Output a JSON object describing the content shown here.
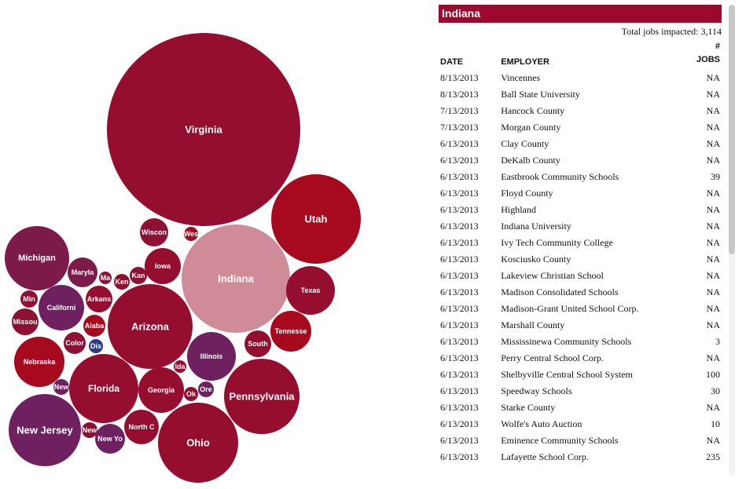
{
  "chart_data": {
    "type": "bubble",
    "bubbles": [
      {
        "label": "Virginia",
        "color": "#950e2f"
      },
      {
        "label": "Utah",
        "color": "#a70a1e"
      },
      {
        "label": "Indiana",
        "color": "#cf8b98"
      },
      {
        "label": "Wiscon",
        "color": "#8f1034"
      },
      {
        "label": "Wes",
        "color": "#a70a1e"
      },
      {
        "label": "Michigan",
        "color": "#7c1a4a"
      },
      {
        "label": "Maryla",
        "color": "#7c1a4a"
      },
      {
        "label": "Ma",
        "color": "#8f1034"
      },
      {
        "label": "Ken",
        "color": "#950e2f"
      },
      {
        "label": "Kan",
        "color": "#8f1034"
      },
      {
        "label": "Iowa",
        "color": "#950e2f"
      },
      {
        "label": "Texas",
        "color": "#950e2f"
      },
      {
        "label": "Min",
        "color": "#8f1034"
      },
      {
        "label": "Californi",
        "color": "#6f2060"
      },
      {
        "label": "Arkans",
        "color": "#950e2f"
      },
      {
        "label": "Missou",
        "color": "#8f1034"
      },
      {
        "label": "Alaba",
        "color": "#a70a1e"
      },
      {
        "label": "Arizona",
        "color": "#950e2f"
      },
      {
        "label": "Tennesse",
        "color": "#a70a1e"
      },
      {
        "label": "South",
        "color": "#950e2f"
      },
      {
        "label": "Color",
        "color": "#8f1034"
      },
      {
        "label": "Dis",
        "color": "#2d3a8c"
      },
      {
        "label": "Illinois",
        "color": "#6f2060"
      },
      {
        "label": "Nebraska",
        "color": "#a70a1e"
      },
      {
        "label": "Ida",
        "color": "#950e2f"
      },
      {
        "label": "Ok",
        "color": "#950e2f"
      },
      {
        "label": "Ore",
        "color": "#6f2060"
      },
      {
        "label": "Georgia",
        "color": "#950e2f"
      },
      {
        "label": "Florida",
        "color": "#950e2f"
      },
      {
        "label": "New",
        "color": "#6f2060"
      },
      {
        "label": "Pennsylvania",
        "color": "#950e2f"
      },
      {
        "label": "New Jersey",
        "color": "#6f2060"
      },
      {
        "label": "New",
        "color": "#8f1034"
      },
      {
        "label": "North C",
        "color": "#950e2f"
      },
      {
        "label": "New Yo",
        "color": "#6f2060"
      },
      {
        "label": "Ohio",
        "color": "#950e2f"
      }
    ]
  },
  "panel": {
    "title": "Indiana",
    "total_label": "Total jobs impacted:",
    "total_value": "3,114",
    "headers": {
      "date": "DATE",
      "employer": "EMPLOYER",
      "jobs_top": "#",
      "jobs": "JOBS"
    },
    "rows": [
      {
        "date": "8/13/2013",
        "employer": "Vincennes",
        "jobs": "NA"
      },
      {
        "date": "8/13/2013",
        "employer": "Ball State University",
        "jobs": "NA"
      },
      {
        "date": "7/13/2013",
        "employer": "Hancock County",
        "jobs": "NA"
      },
      {
        "date": "7/13/2013",
        "employer": "Morgan County",
        "jobs": "NA"
      },
      {
        "date": "6/13/2013",
        "employer": "Clay County",
        "jobs": "NA"
      },
      {
        "date": "6/13/2013",
        "employer": "DeKalb County",
        "jobs": "NA"
      },
      {
        "date": "6/13/2013",
        "employer": "Eastbrook Community Schools",
        "jobs": "39"
      },
      {
        "date": "6/13/2013",
        "employer": "Floyd County",
        "jobs": "NA"
      },
      {
        "date": "6/13/2013",
        "employer": "Highland",
        "jobs": "NA"
      },
      {
        "date": "6/13/2013",
        "employer": "Indiana University",
        "jobs": "NA"
      },
      {
        "date": "6/13/2013",
        "employer": "Ivy Tech Community College",
        "jobs": "NA"
      },
      {
        "date": "6/13/2013",
        "employer": "Kosciusko County",
        "jobs": "NA"
      },
      {
        "date": "6/13/2013",
        "employer": "Lakeview Christian School",
        "jobs": "NA"
      },
      {
        "date": "6/13/2013",
        "employer": "Madison Consolidated Schools",
        "jobs": "NA"
      },
      {
        "date": "6/13/2013",
        "employer": "Madison-Grant United School Corp.",
        "jobs": "NA"
      },
      {
        "date": "6/13/2013",
        "employer": "Marshall County",
        "jobs": "NA"
      },
      {
        "date": "6/13/2013",
        "employer": "Mississinewa Community Schools",
        "jobs": "3"
      },
      {
        "date": "6/13/2013",
        "employer": "Perry Central School Corp.",
        "jobs": "NA"
      },
      {
        "date": "6/13/2013",
        "employer": "Shelbyville Central School System",
        "jobs": "100"
      },
      {
        "date": "6/13/2013",
        "employer": "Speedway Schools",
        "jobs": "30"
      },
      {
        "date": "6/13/2013",
        "employer": "Starke County",
        "jobs": "NA"
      },
      {
        "date": "6/13/2013",
        "employer": "Wolfe's Auto Auction",
        "jobs": "10"
      },
      {
        "date": "6/13/2013",
        "employer": "Eminence Community Schools",
        "jobs": "NA"
      },
      {
        "date": "6/13/2013",
        "employer": "Lafayette School Corp.",
        "jobs": "235"
      }
    ]
  }
}
